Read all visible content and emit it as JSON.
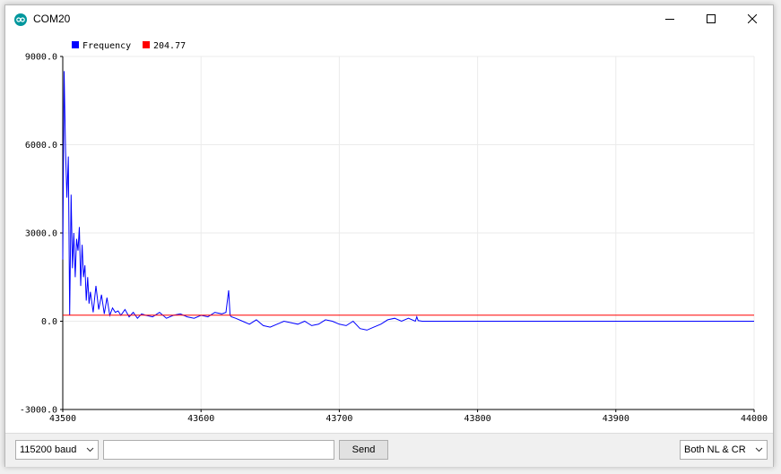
{
  "window": {
    "title": "COM20"
  },
  "legend": {
    "label1": "Frequency",
    "label2": "204.77",
    "color1": "#0000ff",
    "color2": "#ff0000"
  },
  "chart_data": {
    "type": "line",
    "xlim": [
      43500,
      44000
    ],
    "ylim": [
      -3000,
      9000
    ],
    "xticks": [
      "43500",
      "43600",
      "43700",
      "43800",
      "43900",
      "44000"
    ],
    "yticks": [
      "9000.0",
      "6000.0",
      "3000.0",
      "0.0",
      "-3000.0"
    ],
    "grid": true,
    "legend_position": "top-left",
    "series": [
      {
        "name": "Frequency",
        "color": "#0000ff",
        "x": [
          43500,
          43501,
          43502,
          43503,
          43504,
          43505,
          43506,
          43507,
          43508,
          43509,
          43510,
          43511,
          43512,
          43513,
          43514,
          43515,
          43516,
          43517,
          43518,
          43519,
          43520,
          43522,
          43524,
          43526,
          43528,
          43530,
          43532,
          43534,
          43536,
          43538,
          43540,
          43542,
          43545,
          43548,
          43551,
          43554,
          43557,
          43560,
          43565,
          43570,
          43575,
          43580,
          43585,
          43590,
          43595,
          43600,
          43605,
          43610,
          43615,
          43618,
          43620,
          43621,
          43622,
          43625,
          43630,
          43635,
          43640,
          43645,
          43650,
          43655,
          43660,
          43665,
          43670,
          43675,
          43680,
          43685,
          43690,
          43695,
          43700,
          43705,
          43710,
          43715,
          43720,
          43725,
          43730,
          43735,
          43740,
          43745,
          43750,
          43755,
          43756,
          43757,
          43760,
          43800,
          43850,
          43900,
          43950,
          44000
        ],
        "values": [
          2100,
          8500,
          5800,
          4200,
          5600,
          200,
          4300,
          1800,
          3000,
          1500,
          2800,
          2400,
          3200,
          1200,
          2600,
          1500,
          1900,
          700,
          1500,
          600,
          1000,
          300,
          1200,
          400,
          900,
          250,
          800,
          200,
          450,
          300,
          350,
          200,
          400,
          150,
          300,
          100,
          250,
          200,
          150,
          300,
          100,
          200,
          250,
          150,
          100,
          200,
          150,
          300,
          250,
          300,
          1050,
          200,
          150,
          100,
          0,
          -100,
          50,
          -150,
          -200,
          -100,
          0,
          -50,
          -100,
          0,
          -150,
          -100,
          50,
          0,
          -100,
          -150,
          0,
          -250,
          -300,
          -200,
          -100,
          50,
          100,
          0,
          100,
          0,
          150,
          20,
          0,
          0,
          0,
          0,
          0,
          0
        ]
      },
      {
        "name": "204.77",
        "color": "#ff0000",
        "x": [
          43500,
          44000
        ],
        "values": [
          204.77,
          204.77
        ]
      }
    ]
  },
  "bottom": {
    "baud": "115200 baud",
    "input_value": "",
    "send_label": "Send",
    "line_ending": "Both NL & CR"
  }
}
